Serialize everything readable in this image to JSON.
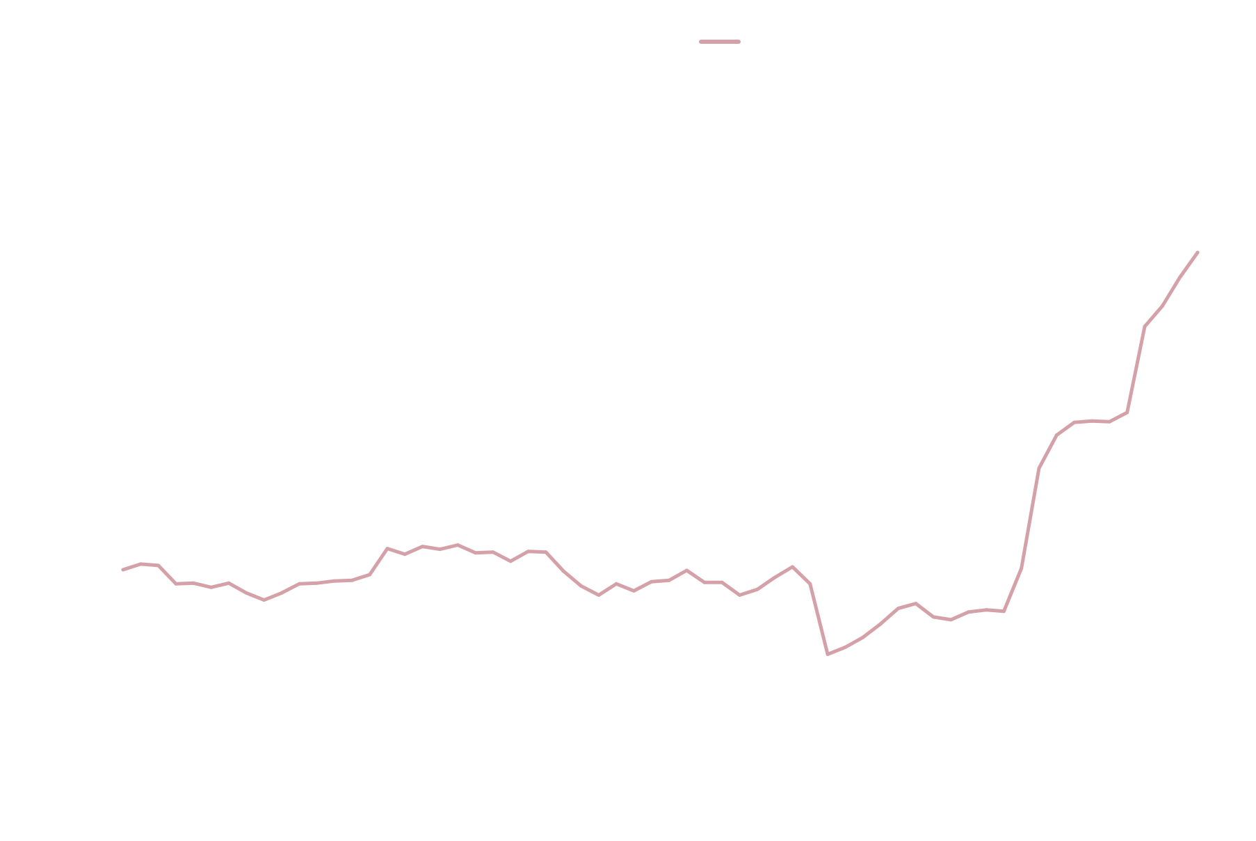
{
  "chart_data": {
    "type": "line",
    "title": "",
    "xlabel": "",
    "ylabel": "",
    "grid": false,
    "legend": "top-center",
    "ylim": [
      -1.6,
      4.0
    ],
    "series": [
      {
        "color": "#d4a1a9",
        "x": [
          0,
          1,
          2,
          3,
          4,
          5,
          6,
          7,
          8,
          9,
          10,
          11,
          12,
          13,
          14,
          15,
          16,
          17,
          18,
          19,
          20,
          21,
          22,
          23,
          24,
          25,
          26,
          27,
          28,
          29,
          30,
          31,
          32,
          33,
          34,
          35,
          36,
          37,
          38,
          39,
          40,
          41,
          42,
          43,
          44,
          45,
          46,
          47,
          48,
          49,
          50,
          51,
          52,
          53,
          54,
          55,
          56,
          57,
          58,
          59,
          60,
          61
        ],
        "values": [
          -0.5,
          -0.42,
          -0.44,
          -0.7,
          -0.69,
          -0.75,
          -0.69,
          -0.83,
          -0.93,
          -0.83,
          -0.7,
          -0.69,
          -0.66,
          -0.65,
          -0.57,
          -0.2,
          -0.28,
          -0.17,
          -0.21,
          -0.15,
          -0.26,
          -0.25,
          -0.38,
          -0.24,
          -0.25,
          -0.52,
          -0.73,
          -0.86,
          -0.7,
          -0.8,
          -0.67,
          -0.65,
          -0.51,
          -0.68,
          -0.68,
          -0.86,
          -0.78,
          -0.61,
          -0.46,
          -0.7,
          -1.7,
          -1.6,
          -1.46,
          -1.27,
          -1.05,
          -0.98,
          -1.17,
          -1.21,
          -1.1,
          -1.07,
          -1.09,
          -0.48,
          0.94,
          1.41,
          1.59,
          1.61,
          1.6,
          1.73,
          2.95,
          3.24,
          3.65,
          4.0
        ]
      }
    ]
  }
}
